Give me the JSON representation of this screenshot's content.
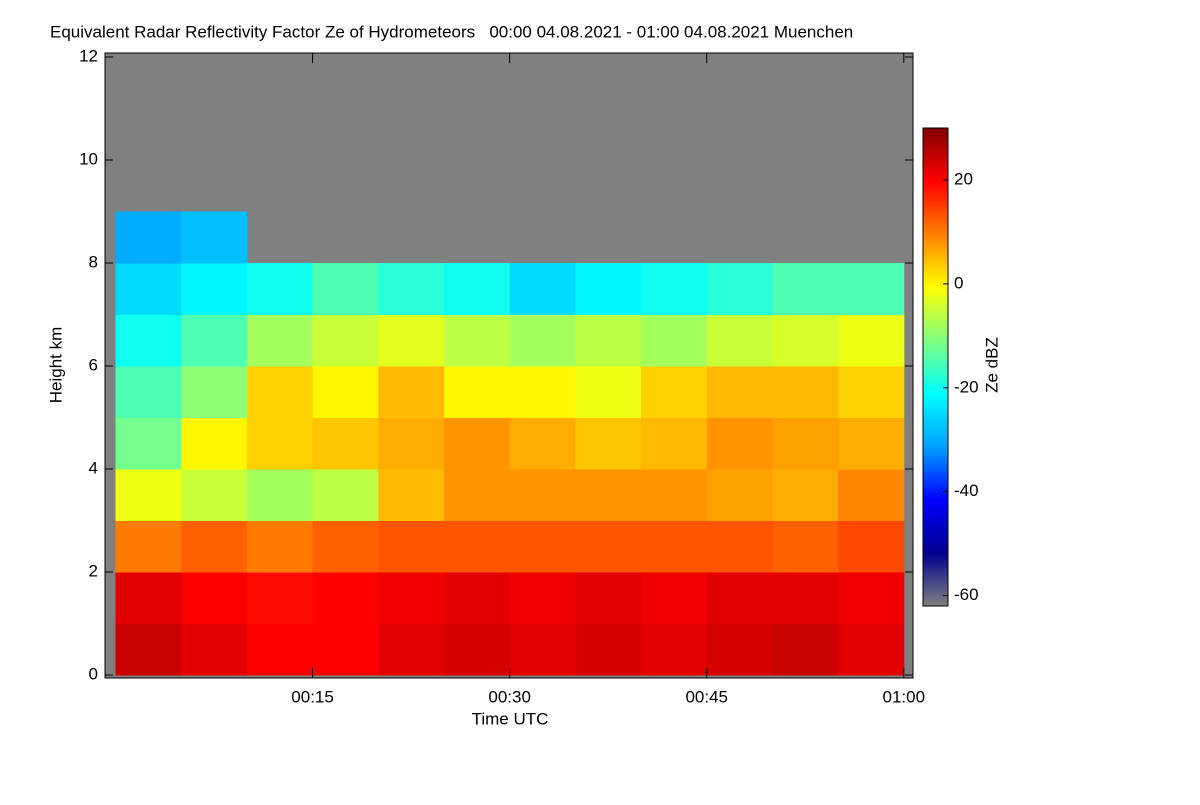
{
  "chart_data": {
    "type": "heatmap",
    "title": "Equivalent Radar Reflectivity Factor Ze of Hydrometeors   00:00 04.08.2021 - 01:00 04.08.2021 Muenchen",
    "x_label": "Time UTC",
    "y_label": "Height km",
    "colorbar_label": "Ze dBZ",
    "xlim": [
      -0.8,
      60.7
    ],
    "xticks": [
      {
        "value": 15,
        "label": "00:15"
      },
      {
        "value": 30,
        "label": "00:30"
      },
      {
        "value": 45,
        "label": "00:45"
      },
      {
        "value": 60,
        "label": "01:00"
      }
    ],
    "ylim": [
      0,
      12
    ],
    "yticks": [
      0,
      2,
      4,
      6,
      8,
      10,
      12
    ],
    "clim": [
      -62,
      30
    ],
    "cticks": [
      -60,
      -40,
      -20,
      0,
      20
    ],
    "colormap": [
      "#808080",
      "#00008f",
      "#0000ff",
      "#00a0ff",
      "#00ffff",
      "#80ff80",
      "#ffff00",
      "#ff8000",
      "#ff0000",
      "#800000"
    ],
    "nodata_color": "#808080",
    "x_edges": [
      0,
      5,
      10,
      15,
      20,
      25,
      30,
      35,
      40,
      45,
      50,
      55,
      60
    ],
    "y_edges": [
      0,
      1,
      2,
      3,
      4,
      5,
      6,
      7,
      8,
      9
    ],
    "z": [
      [
        24,
        22,
        20,
        20,
        22,
        23,
        22,
        23,
        22,
        23,
        24,
        22
      ],
      [
        22,
        20,
        19,
        20,
        21,
        22,
        21,
        22,
        21,
        22,
        22,
        21
      ],
      [
        10,
        12,
        10,
        12,
        13,
        13,
        13,
        13,
        13,
        13,
        12,
        14
      ],
      [
        -2,
        -5,
        -8,
        -6,
        5,
        8,
        8,
        8,
        8,
        7,
        6,
        9
      ],
      [
        -12,
        0,
        3,
        4,
        6,
        8,
        6,
        4,
        5,
        8,
        7,
        6
      ],
      [
        -15,
        -10,
        3,
        0,
        5,
        0,
        0,
        -2,
        3,
        5,
        5,
        3
      ],
      [
        -20,
        -15,
        -8,
        -5,
        -3,
        -6,
        -8,
        -6,
        -8,
        -5,
        -4,
        -2
      ],
      [
        -25,
        -22,
        -20,
        -15,
        -18,
        -20,
        -25,
        -22,
        -20,
        -18,
        -15,
        -15
      ],
      [
        -30,
        -28,
        null,
        null,
        null,
        null,
        null,
        null,
        null,
        null,
        null,
        null
      ]
    ]
  }
}
